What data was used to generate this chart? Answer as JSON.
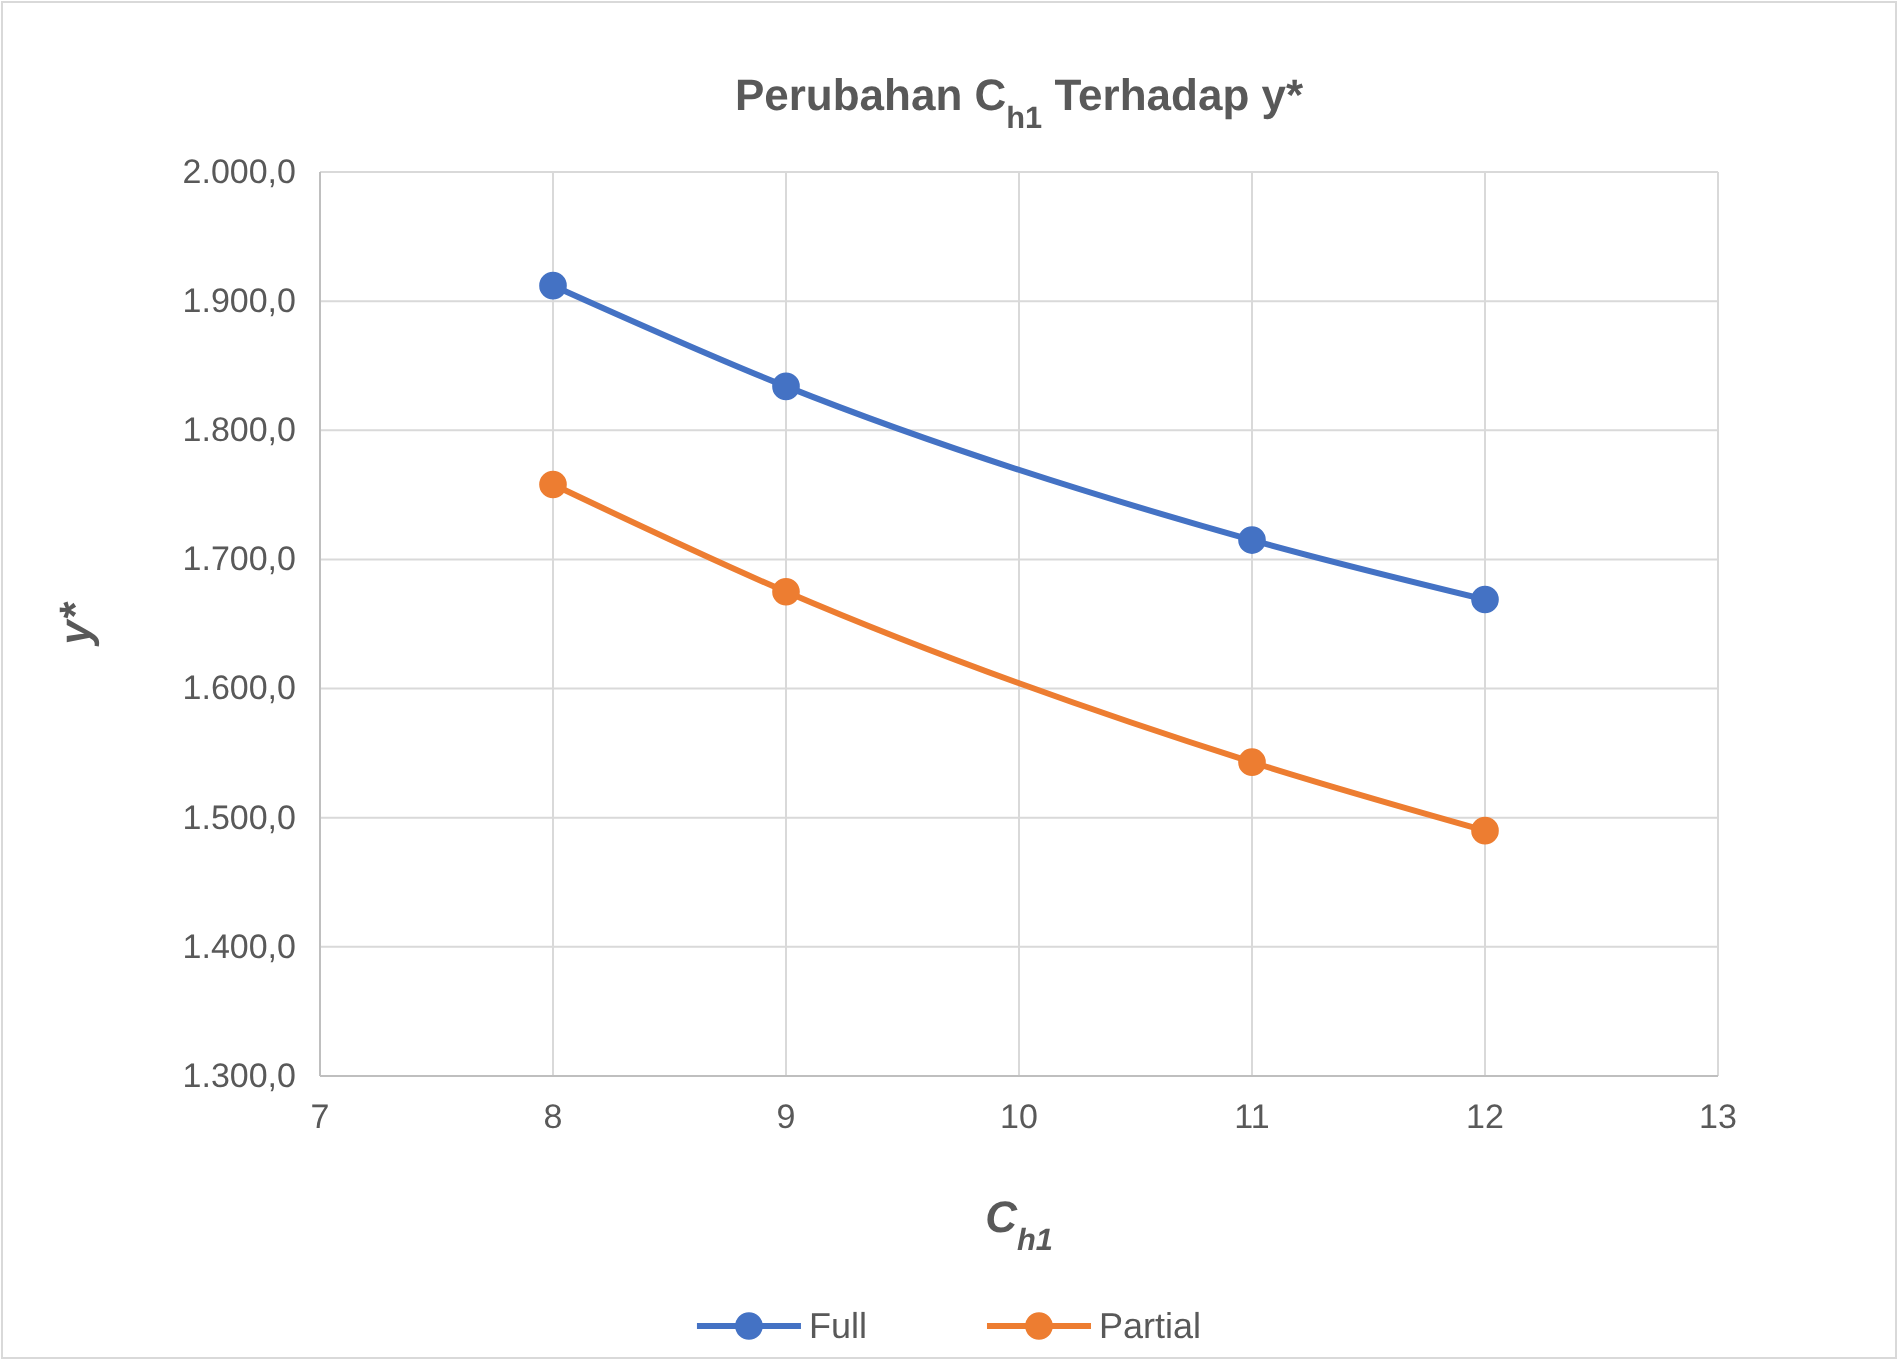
{
  "chart_data": {
    "type": "line",
    "title": "Perubahan C$_{h1}$ Terhadap y*",
    "xlabel": "C$_{h1}$",
    "ylabel": "y*",
    "x": [
      8,
      9,
      11,
      12
    ],
    "series": [
      {
        "name": "Full",
        "color": "#4472c4",
        "values": [
          1912,
          1834,
          1715,
          1669
        ]
      },
      {
        "name": "Partial",
        "color": "#ed7d31",
        "values": [
          1758,
          1675,
          1543,
          1490
        ]
      }
    ],
    "xlim": [
      7,
      13
    ],
    "xticks": [
      7,
      8,
      9,
      10,
      11,
      12,
      13
    ],
    "ylim": [
      1300,
      2000
    ],
    "yticks": [
      {
        "value": 1300,
        "label": "1.300,0"
      },
      {
        "value": 1400,
        "label": "1.400,0"
      },
      {
        "value": 1500,
        "label": "1.500,0"
      },
      {
        "value": 1600,
        "label": "1.600,0"
      },
      {
        "value": 1700,
        "label": "1.700,0"
      },
      {
        "value": 1800,
        "label": "1.800,0"
      },
      {
        "value": 1900,
        "label": "1.900,0"
      },
      {
        "value": 2000,
        "label": "2.000,0"
      }
    ],
    "grid": true,
    "legend": "bottom",
    "marker": "circle",
    "line_style": "solid"
  }
}
